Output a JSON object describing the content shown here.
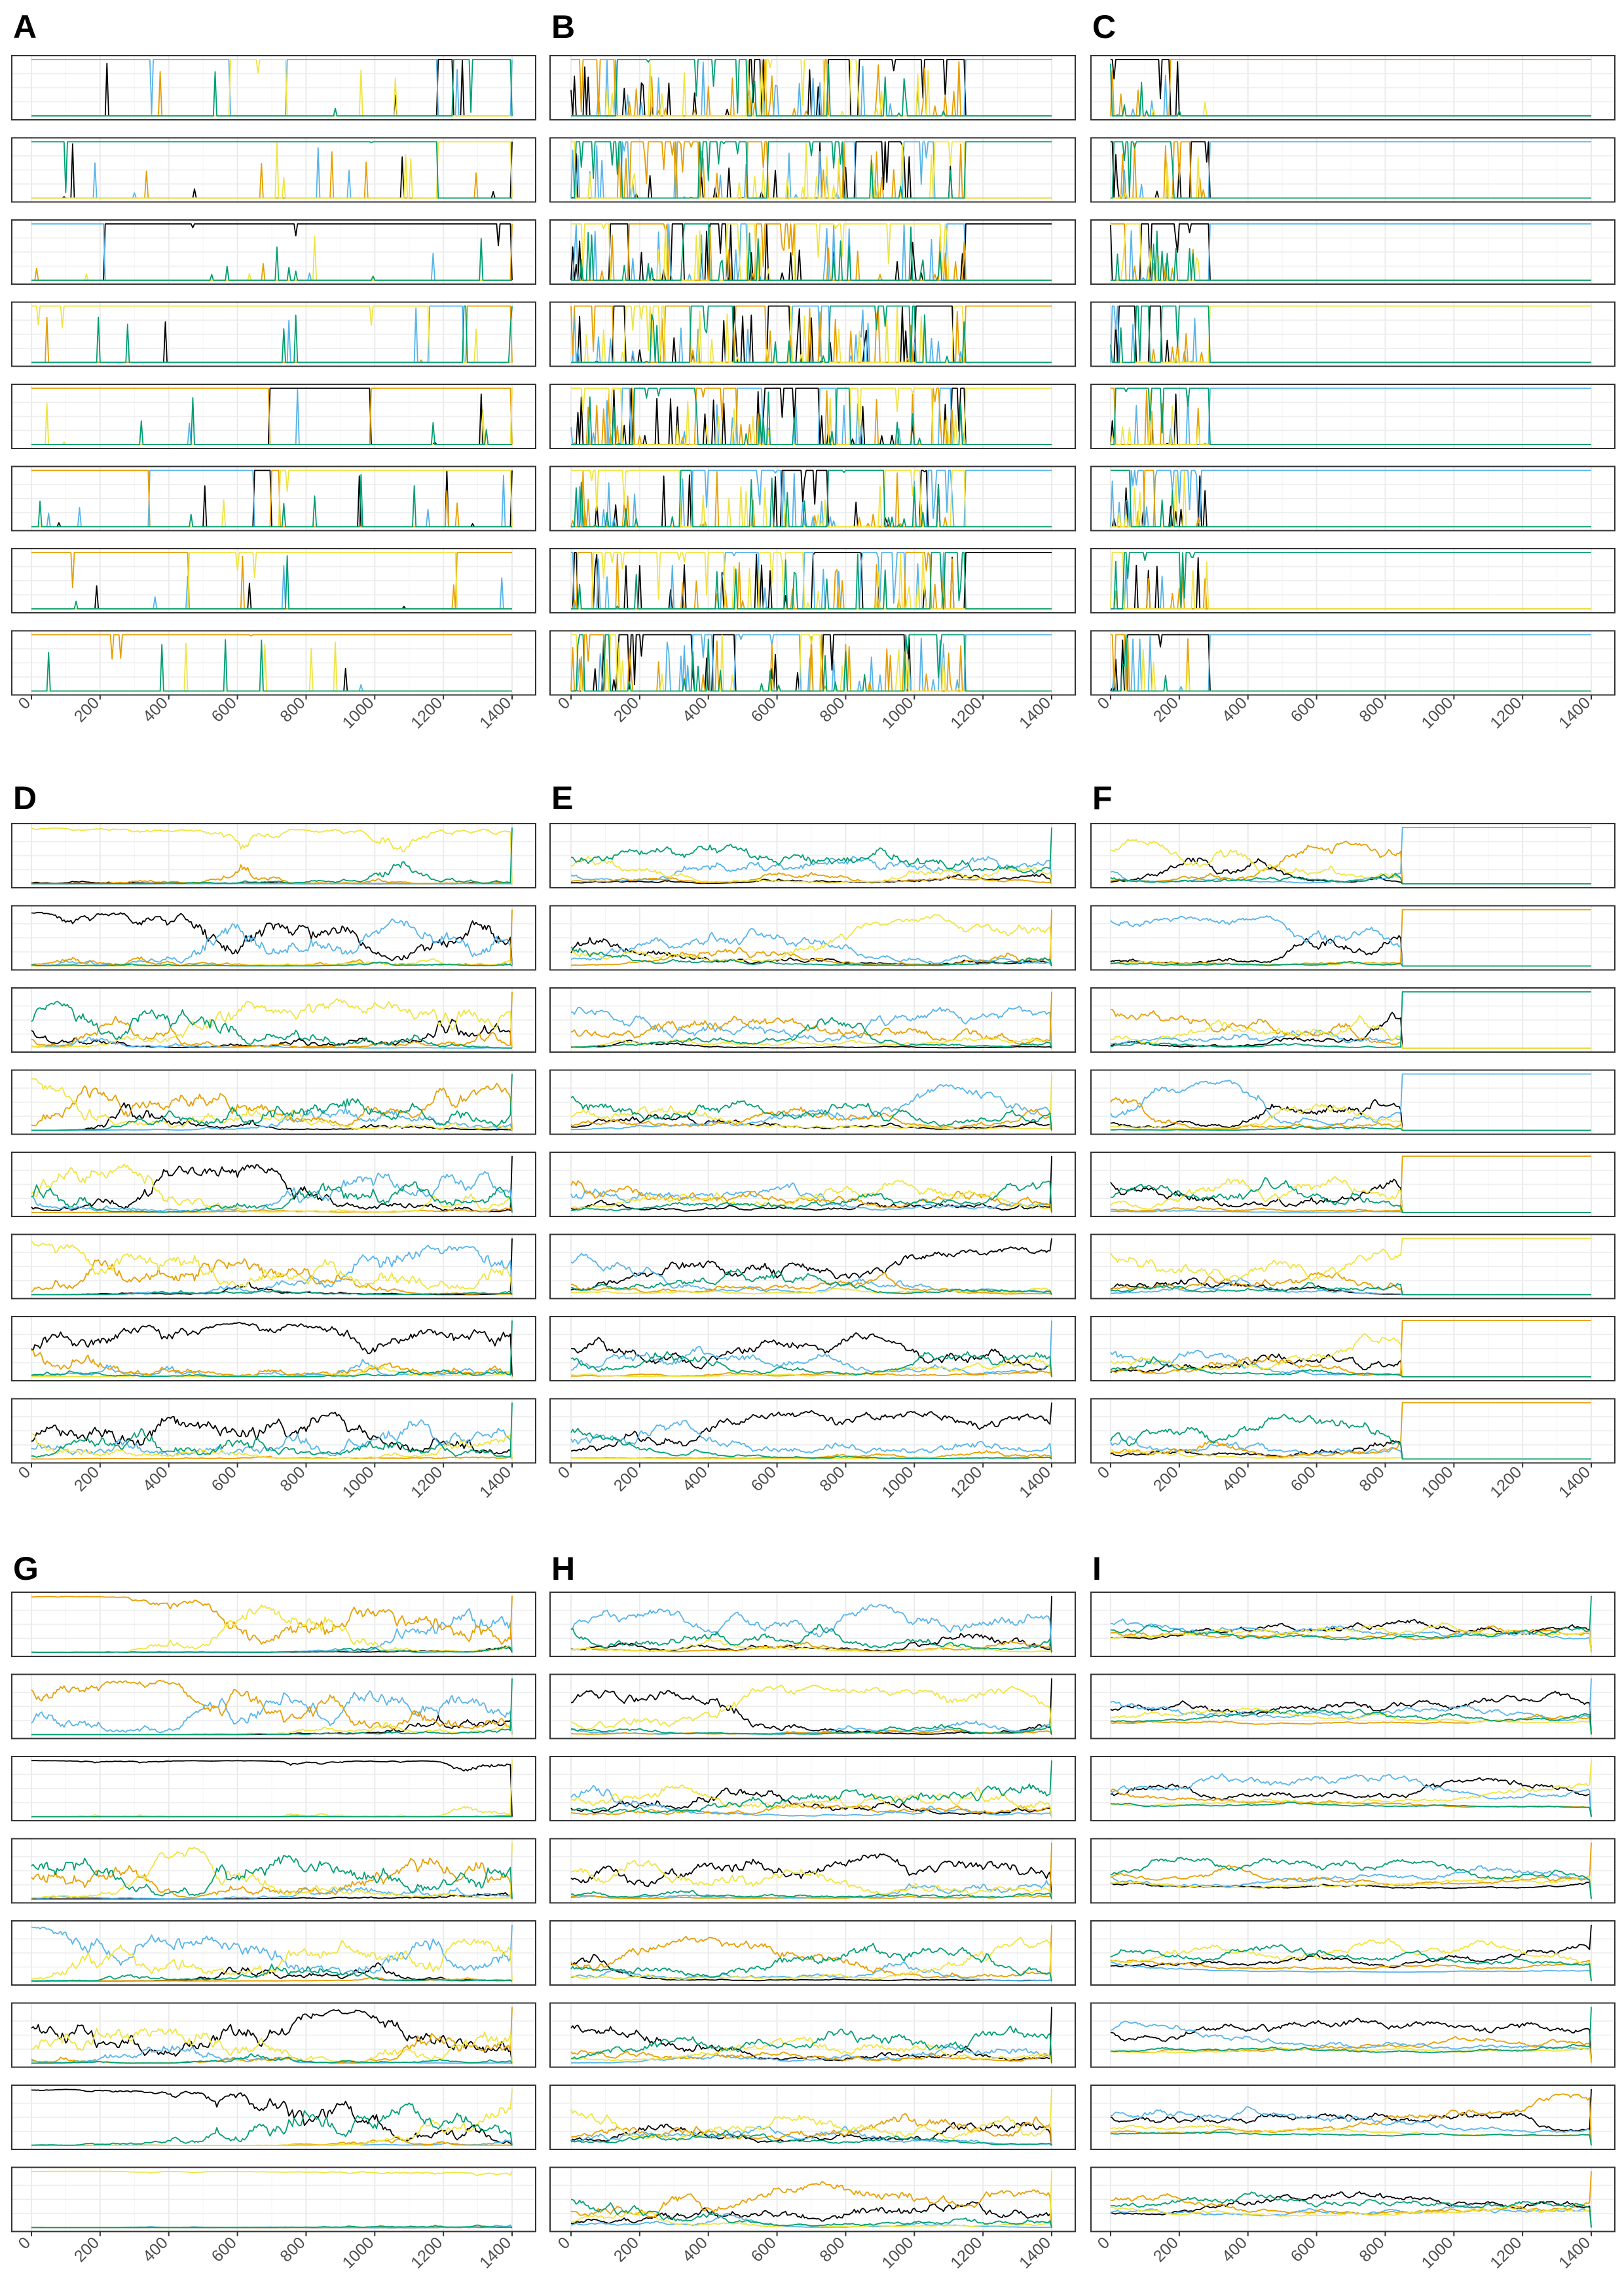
{
  "figure": {
    "panel_letters": [
      "A",
      "B",
      "C",
      "D",
      "E",
      "F",
      "G",
      "H",
      "I"
    ],
    "series_colors": [
      "#000000",
      "#56B4E9",
      "#E69F00",
      "#F0E442",
      "#009E73"
    ]
  },
  "chart_data": [
    {
      "panel": "A",
      "type": "line",
      "facets": 8,
      "x_ticks": [
        0,
        200,
        400,
        600,
        800,
        1000,
        1200,
        1400
      ],
      "xlim": [
        0,
        1400
      ],
      "ylim": [
        0,
        1
      ],
      "grid": true,
      "regime": "sparse-switching",
      "active_until": 1400
    },
    {
      "panel": "B",
      "type": "line",
      "facets": 8,
      "x_ticks": [
        0,
        200,
        400,
        600,
        800,
        1000,
        1200,
        1400
      ],
      "xlim": [
        0,
        1400
      ],
      "ylim": [
        0,
        1
      ],
      "grid": true,
      "regime": "dense-switching-then-fixation",
      "active_until": 1150
    },
    {
      "panel": "C",
      "type": "line",
      "facets": 8,
      "x_ticks": [
        0,
        200,
        400,
        600,
        800,
        1000,
        1200,
        1400
      ],
      "xlim": [
        0,
        1400
      ],
      "ylim": [
        0,
        1
      ],
      "grid": true,
      "regime": "early-fixation",
      "active_until": 290
    },
    {
      "panel": "D",
      "type": "line",
      "facets": 8,
      "x_ticks": [
        0,
        200,
        400,
        600,
        800,
        1000,
        1200,
        1400
      ],
      "xlim": [
        0,
        1400
      ],
      "ylim": [
        0,
        1
      ],
      "grid": true,
      "regime": "slow-sweeps",
      "active_until": 1400
    },
    {
      "panel": "E",
      "type": "line",
      "facets": 8,
      "x_ticks": [
        0,
        200,
        400,
        600,
        800,
        1000,
        1200,
        1400
      ],
      "xlim": [
        0,
        1400
      ],
      "ylim": [
        0,
        1
      ],
      "grid": true,
      "regime": "continuous-fluctuation",
      "active_until": 1400
    },
    {
      "panel": "F",
      "type": "line",
      "facets": 8,
      "x_ticks": [
        0,
        200,
        400,
        600,
        800,
        1000,
        1200,
        1400
      ],
      "xlim": [
        0,
        1400
      ],
      "ylim": [
        0,
        1
      ],
      "grid": true,
      "regime": "fluctuation-then-fixation",
      "active_until": 850
    },
    {
      "panel": "G",
      "type": "line",
      "facets": 8,
      "x_ticks": [
        0,
        200,
        400,
        600,
        800,
        1000,
        1200,
        1400
      ],
      "xlim": [
        0,
        1400
      ],
      "ylim": [
        0,
        1
      ],
      "grid": true,
      "regime": "slow-sweeps",
      "active_until": 1400
    },
    {
      "panel": "H",
      "type": "line",
      "facets": 8,
      "x_ticks": [
        0,
        200,
        400,
        600,
        800,
        1000,
        1200,
        1400
      ],
      "xlim": [
        0,
        1400
      ],
      "ylim": [
        0,
        1
      ],
      "grid": true,
      "regime": "continuous-fluctuation",
      "active_until": 1400
    },
    {
      "panel": "I",
      "type": "line",
      "facets": 8,
      "x_ticks": [
        0,
        200,
        400,
        600,
        800,
        1000,
        1200,
        1400
      ],
      "xlim": [
        0,
        1400
      ],
      "ylim": [
        0,
        1
      ],
      "grid": true,
      "regime": "coexistence",
      "active_until": 1400
    }
  ]
}
